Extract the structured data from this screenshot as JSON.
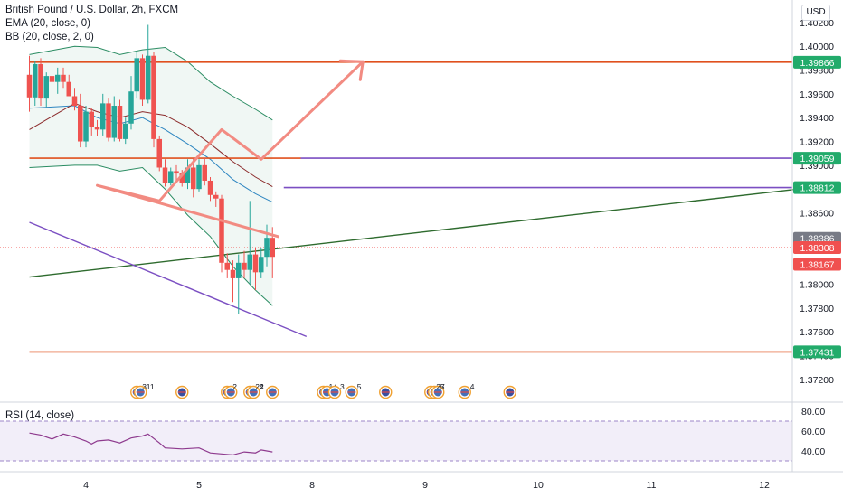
{
  "header": {
    "title": "British Pound / U.S. Dollar, 2h, FXCM",
    "indicator_ema": "EMA (20, close, 0)",
    "indicator_bb": "BB (20, close, 2, 0)",
    "currency": "USD"
  },
  "rsi_panel": {
    "label": "RSI (14, close)"
  },
  "colors": {
    "up": "#26a69a",
    "down": "#ef5350",
    "orange_line": "#e0501e",
    "purple_line": "#7b4fc2",
    "green_line": "#2e6b2e",
    "bb_band": "#2a8c62",
    "ema": "#8b2a2a",
    "bb_mid": "#2e86c1",
    "projection": "#f28b82",
    "rsi": "#8e3a8e",
    "tag_green": "#22ab6b",
    "tag_red": "#f0504f",
    "tag_gray": "#787b86"
  },
  "chart_data": {
    "type": "candlestick",
    "symbol": "GBPUSD",
    "timeframe": "2h",
    "ylim": [
      1.371,
      1.4048
    ],
    "x_day_range": [
      3.5,
      12.3
    ],
    "x_ticks": [
      "4",
      "5",
      "8",
      "9",
      "10",
      "11",
      "12"
    ],
    "y_ticks": [
      "1.37200",
      "1.37400",
      "1.37600",
      "1.37800",
      "1.38000",
      "1.38200",
      "1.38400",
      "1.38600",
      "1.38800",
      "1.39000",
      "1.39200",
      "1.39400",
      "1.39600",
      "1.39800",
      "1.40000",
      "1.40200",
      "1.40400"
    ],
    "candles": [
      {
        "t": 3.5,
        "o": 1.3976,
        "h": 1.3992,
        "l": 1.3945,
        "c": 1.3957
      },
      {
        "t": 3.55,
        "o": 1.3957,
        "h": 1.3988,
        "l": 1.395,
        "c": 1.3985
      },
      {
        "t": 3.6,
        "o": 1.3985,
        "h": 1.399,
        "l": 1.395,
        "c": 1.3956
      },
      {
        "t": 3.65,
        "o": 1.3956,
        "h": 1.3978,
        "l": 1.3949,
        "c": 1.3975
      },
      {
        "t": 3.7,
        "o": 1.3975,
        "h": 1.398,
        "l": 1.3955,
        "c": 1.397
      },
      {
        "t": 3.75,
        "o": 1.397,
        "h": 1.3982,
        "l": 1.396,
        "c": 1.3976
      },
      {
        "t": 3.8,
        "o": 1.3976,
        "h": 1.3982,
        "l": 1.3965,
        "c": 1.397
      },
      {
        "t": 3.85,
        "o": 1.397,
        "h": 1.3976,
        "l": 1.3958,
        "c": 1.3958
      },
      {
        "t": 3.9,
        "o": 1.3958,
        "h": 1.3965,
        "l": 1.3946,
        "c": 1.395
      },
      {
        "t": 3.95,
        "o": 1.395,
        "h": 1.396,
        "l": 1.3915,
        "c": 1.392
      },
      {
        "t": 4.0,
        "o": 1.392,
        "h": 1.395,
        "l": 1.3915,
        "c": 1.3945
      },
      {
        "t": 4.05,
        "o": 1.3945,
        "h": 1.3948,
        "l": 1.3925,
        "c": 1.3932
      },
      {
        "t": 4.1,
        "o": 1.3932,
        "h": 1.3938,
        "l": 1.3925,
        "c": 1.393
      },
      {
        "t": 4.15,
        "o": 1.393,
        "h": 1.396,
        "l": 1.3925,
        "c": 1.3952
      },
      {
        "t": 4.2,
        "o": 1.3952,
        "h": 1.3956,
        "l": 1.392,
        "c": 1.3923
      },
      {
        "t": 4.25,
        "o": 1.3923,
        "h": 1.3958,
        "l": 1.392,
        "c": 1.395
      },
      {
        "t": 4.3,
        "o": 1.395,
        "h": 1.3955,
        "l": 1.392,
        "c": 1.3922
      },
      {
        "t": 4.35,
        "o": 1.3922,
        "h": 1.394,
        "l": 1.3918,
        "c": 1.3935
      },
      {
        "t": 4.4,
        "o": 1.3935,
        "h": 1.3975,
        "l": 1.393,
        "c": 1.3962
      },
      {
        "t": 4.45,
        "o": 1.3962,
        "h": 1.3996,
        "l": 1.3956,
        "c": 1.399
      },
      {
        "t": 4.5,
        "o": 1.399,
        "h": 1.3993,
        "l": 1.395,
        "c": 1.3955
      },
      {
        "t": 4.55,
        "o": 1.3955,
        "h": 1.4018,
        "l": 1.3952,
        "c": 1.3992
      },
      {
        "t": 4.6,
        "o": 1.3992,
        "h": 1.3995,
        "l": 1.3915,
        "c": 1.3922
      },
      {
        "t": 4.65,
        "o": 1.3922,
        "h": 1.3925,
        "l": 1.3895,
        "c": 1.3898
      },
      {
        "t": 4.7,
        "o": 1.3898,
        "h": 1.3905,
        "l": 1.3882,
        "c": 1.3885
      },
      {
        "t": 4.75,
        "o": 1.3885,
        "h": 1.3898,
        "l": 1.3883,
        "c": 1.3895
      },
      {
        "t": 4.8,
        "o": 1.3895,
        "h": 1.39,
        "l": 1.3885,
        "c": 1.3893
      },
      {
        "t": 4.85,
        "o": 1.3893,
        "h": 1.3896,
        "l": 1.3882,
        "c": 1.3885
      },
      {
        "t": 4.9,
        "o": 1.3885,
        "h": 1.3905,
        "l": 1.388,
        "c": 1.3898
      },
      {
        "t": 4.95,
        "o": 1.3898,
        "h": 1.3906,
        "l": 1.3873,
        "c": 1.388
      },
      {
        "t": 5.0,
        "o": 1.388,
        "h": 1.3905,
        "l": 1.3878,
        "c": 1.39
      },
      {
        "t": 5.05,
        "o": 1.39,
        "h": 1.3906,
        "l": 1.3883,
        "c": 1.3887
      },
      {
        "t": 5.1,
        "o": 1.3887,
        "h": 1.389,
        "l": 1.387,
        "c": 1.3875
      },
      {
        "t": 5.15,
        "o": 1.3875,
        "h": 1.3878,
        "l": 1.3865,
        "c": 1.3872
      },
      {
        "t": 5.2,
        "o": 1.3872,
        "h": 1.3875,
        "l": 1.381,
        "c": 1.3818
      },
      {
        "t": 5.25,
        "o": 1.3818,
        "h": 1.3826,
        "l": 1.3805,
        "c": 1.3812
      },
      {
        "t": 5.3,
        "o": 1.3812,
        "h": 1.382,
        "l": 1.3785,
        "c": 1.3805
      },
      {
        "t": 5.35,
        "o": 1.3805,
        "h": 1.3825,
        "l": 1.3775,
        "c": 1.3818
      },
      {
        "t": 5.4,
        "o": 1.3818,
        "h": 1.3828,
        "l": 1.3805,
        "c": 1.3812
      },
      {
        "t": 5.45,
        "o": 1.3812,
        "h": 1.387,
        "l": 1.38,
        "c": 1.3825
      },
      {
        "t": 5.5,
        "o": 1.3825,
        "h": 1.383,
        "l": 1.3795,
        "c": 1.381
      },
      {
        "t": 5.55,
        "o": 1.381,
        "h": 1.383,
        "l": 1.3805,
        "c": 1.3823
      },
      {
        "t": 5.6,
        "o": 1.3823,
        "h": 1.385,
        "l": 1.3815,
        "c": 1.3839
      },
      {
        "t": 5.65,
        "o": 1.3839,
        "h": 1.3848,
        "l": 1.3805,
        "c": 1.3823
      }
    ],
    "bollinger": {
      "upper": [
        [
          3.5,
          1.3993
        ],
        [
          3.9,
          1.4
        ],
        [
          4.1,
          1.3999
        ],
        [
          4.3,
          1.3993
        ],
        [
          4.5,
          1.3997
        ],
        [
          4.7,
          1.3999
        ],
        [
          4.9,
          1.3987
        ],
        [
          5.1,
          1.397
        ],
        [
          5.3,
          1.3958
        ],
        [
          5.5,
          1.3947
        ],
        [
          5.65,
          1.3938
        ]
      ],
      "middle": [
        [
          3.5,
          1.3948
        ],
        [
          3.9,
          1.395
        ],
        [
          4.1,
          1.394
        ],
        [
          4.3,
          1.3935
        ],
        [
          4.5,
          1.394
        ],
        [
          4.7,
          1.393
        ],
        [
          4.9,
          1.3918
        ],
        [
          5.1,
          1.3905
        ],
        [
          5.3,
          1.3888
        ],
        [
          5.5,
          1.3876
        ],
        [
          5.65,
          1.3869
        ]
      ],
      "lower": [
        [
          3.5,
          1.3898
        ],
        [
          3.9,
          1.39
        ],
        [
          4.1,
          1.39
        ],
        [
          4.3,
          1.3895
        ],
        [
          4.5,
          1.3898
        ],
        [
          4.7,
          1.388
        ],
        [
          4.9,
          1.3858
        ],
        [
          5.1,
          1.384
        ],
        [
          5.3,
          1.3815
        ],
        [
          5.5,
          1.3795
        ],
        [
          5.65,
          1.3782
        ]
      ]
    },
    "ema": [
      [
        3.5,
        1.393
      ],
      [
        3.9,
        1.3952
      ],
      [
        4.1,
        1.3945
      ],
      [
        4.3,
        1.394
      ],
      [
        4.5,
        1.3945
      ],
      [
        4.7,
        1.3942
      ],
      [
        4.9,
        1.3932
      ],
      [
        5.1,
        1.3918
      ],
      [
        5.3,
        1.3903
      ],
      [
        5.5,
        1.389
      ],
      [
        5.65,
        1.3882
      ]
    ],
    "horizontal_levels": [
      {
        "price": 1.39866,
        "label": "1.39866",
        "color": "orange",
        "tag": "green",
        "from": 3.5
      },
      {
        "price": 1.39059,
        "label": "1.39059",
        "color": "orange",
        "tag": "green",
        "from": 3.5,
        "to": 5.9
      },
      {
        "price": 1.39059,
        "label": "",
        "color": "purple",
        "from": 5.9
      },
      {
        "price": 1.38812,
        "label": "1.38812",
        "color": "purple",
        "tag": "green",
        "from": 5.75
      },
      {
        "price": 1.37431,
        "label": "1.37431",
        "color": "orange",
        "tag": "green",
        "from": 3.5
      }
    ],
    "price_tags": [
      {
        "price": 1.38386,
        "label": "1.38386",
        "color": "gray"
      },
      {
        "price": 1.38308,
        "label": "1.38308",
        "color": "red"
      },
      {
        "price": 1.38167,
        "label": "1.38167",
        "color": "red"
      }
    ],
    "current_price_dotted": 1.38308,
    "trendlines": [
      {
        "name": "",
        "points": [
          [
            3.5,
            1.3806
          ],
          [
            12.3,
            1.388
          ]
        ],
        "color": "green"
      },
      {
        "name": "",
        "points": [
          [
            3.5,
            1.3852
          ],
          [
            7.95,
            1.3756
          ]
        ],
        "color": "purple"
      }
    ],
    "position_box": {
      "t0": 5.85,
      "t1": 6.35,
      "entry": 1.38386,
      "target": 1.38812,
      "stop": 1.38167
    },
    "projection_path": [
      [
        5.7,
        1.384
      ],
      [
        6.1,
        1.3883
      ],
      [
        6.65,
        1.387
      ],
      [
        7.2,
        1.393
      ],
      [
        7.55,
        1.3905
      ],
      [
        8.45,
        1.3987
      ]
    ],
    "events": [
      {
        "t": 5.65,
        "flags": [
          "us"
        ],
        "label": ""
      },
      {
        "t": 6.45,
        "flags": [
          "us",
          "us"
        ],
        "label": "3"
      },
      {
        "t": 6.55,
        "flags": [],
        "label": "11"
      },
      {
        "t": 6.85,
        "flags": [
          "uk"
        ],
        "label": ""
      },
      {
        "t": 7.25,
        "flags": [
          "us",
          "us"
        ],
        "label": "2"
      },
      {
        "t": 7.45,
        "flags": [
          "us",
          "us"
        ],
        "label": "22"
      },
      {
        "t": 7.55,
        "flags": [],
        "label": "4"
      },
      {
        "t": 8.1,
        "flags": [
          "us",
          "us"
        ],
        "label": "14"
      },
      {
        "t": 8.2,
        "flags": [
          "us"
        ],
        "label": "3"
      },
      {
        "t": 8.35,
        "flags": [
          "us"
        ],
        "label": "5"
      },
      {
        "t": 8.65,
        "flags": [
          "uk"
        ],
        "label": ""
      },
      {
        "t": 9.05,
        "flags": [
          "uk",
          "us",
          "us"
        ],
        "label": "27"
      },
      {
        "t": 9.15,
        "flags": [],
        "label": "5"
      },
      {
        "t": 9.35,
        "flags": [
          "us"
        ],
        "label": "4"
      },
      {
        "t": 9.75,
        "flags": [
          "uk"
        ],
        "label": ""
      }
    ],
    "rsi": {
      "ylim": [
        30,
        80
      ],
      "y_ticks": [
        "80.00",
        "60.00",
        "40.00"
      ],
      "upper_band": 70,
      "lower_band": 30,
      "points": [
        [
          3.5,
          58
        ],
        [
          3.6,
          56
        ],
        [
          3.7,
          52
        ],
        [
          3.8,
          57
        ],
        [
          3.9,
          54
        ],
        [
          4.0,
          50
        ],
        [
          4.05,
          47
        ],
        [
          4.1,
          50
        ],
        [
          4.2,
          51
        ],
        [
          4.3,
          48
        ],
        [
          4.4,
          53
        ],
        [
          4.5,
          55
        ],
        [
          4.55,
          57
        ],
        [
          4.65,
          48
        ],
        [
          4.7,
          43
        ],
        [
          4.85,
          42
        ],
        [
          5.0,
          43
        ],
        [
          5.1,
          38
        ],
        [
          5.2,
          37
        ],
        [
          5.3,
          36
        ],
        [
          5.4,
          39
        ],
        [
          5.5,
          38
        ],
        [
          5.55,
          41
        ],
        [
          5.65,
          39
        ]
      ]
    }
  }
}
